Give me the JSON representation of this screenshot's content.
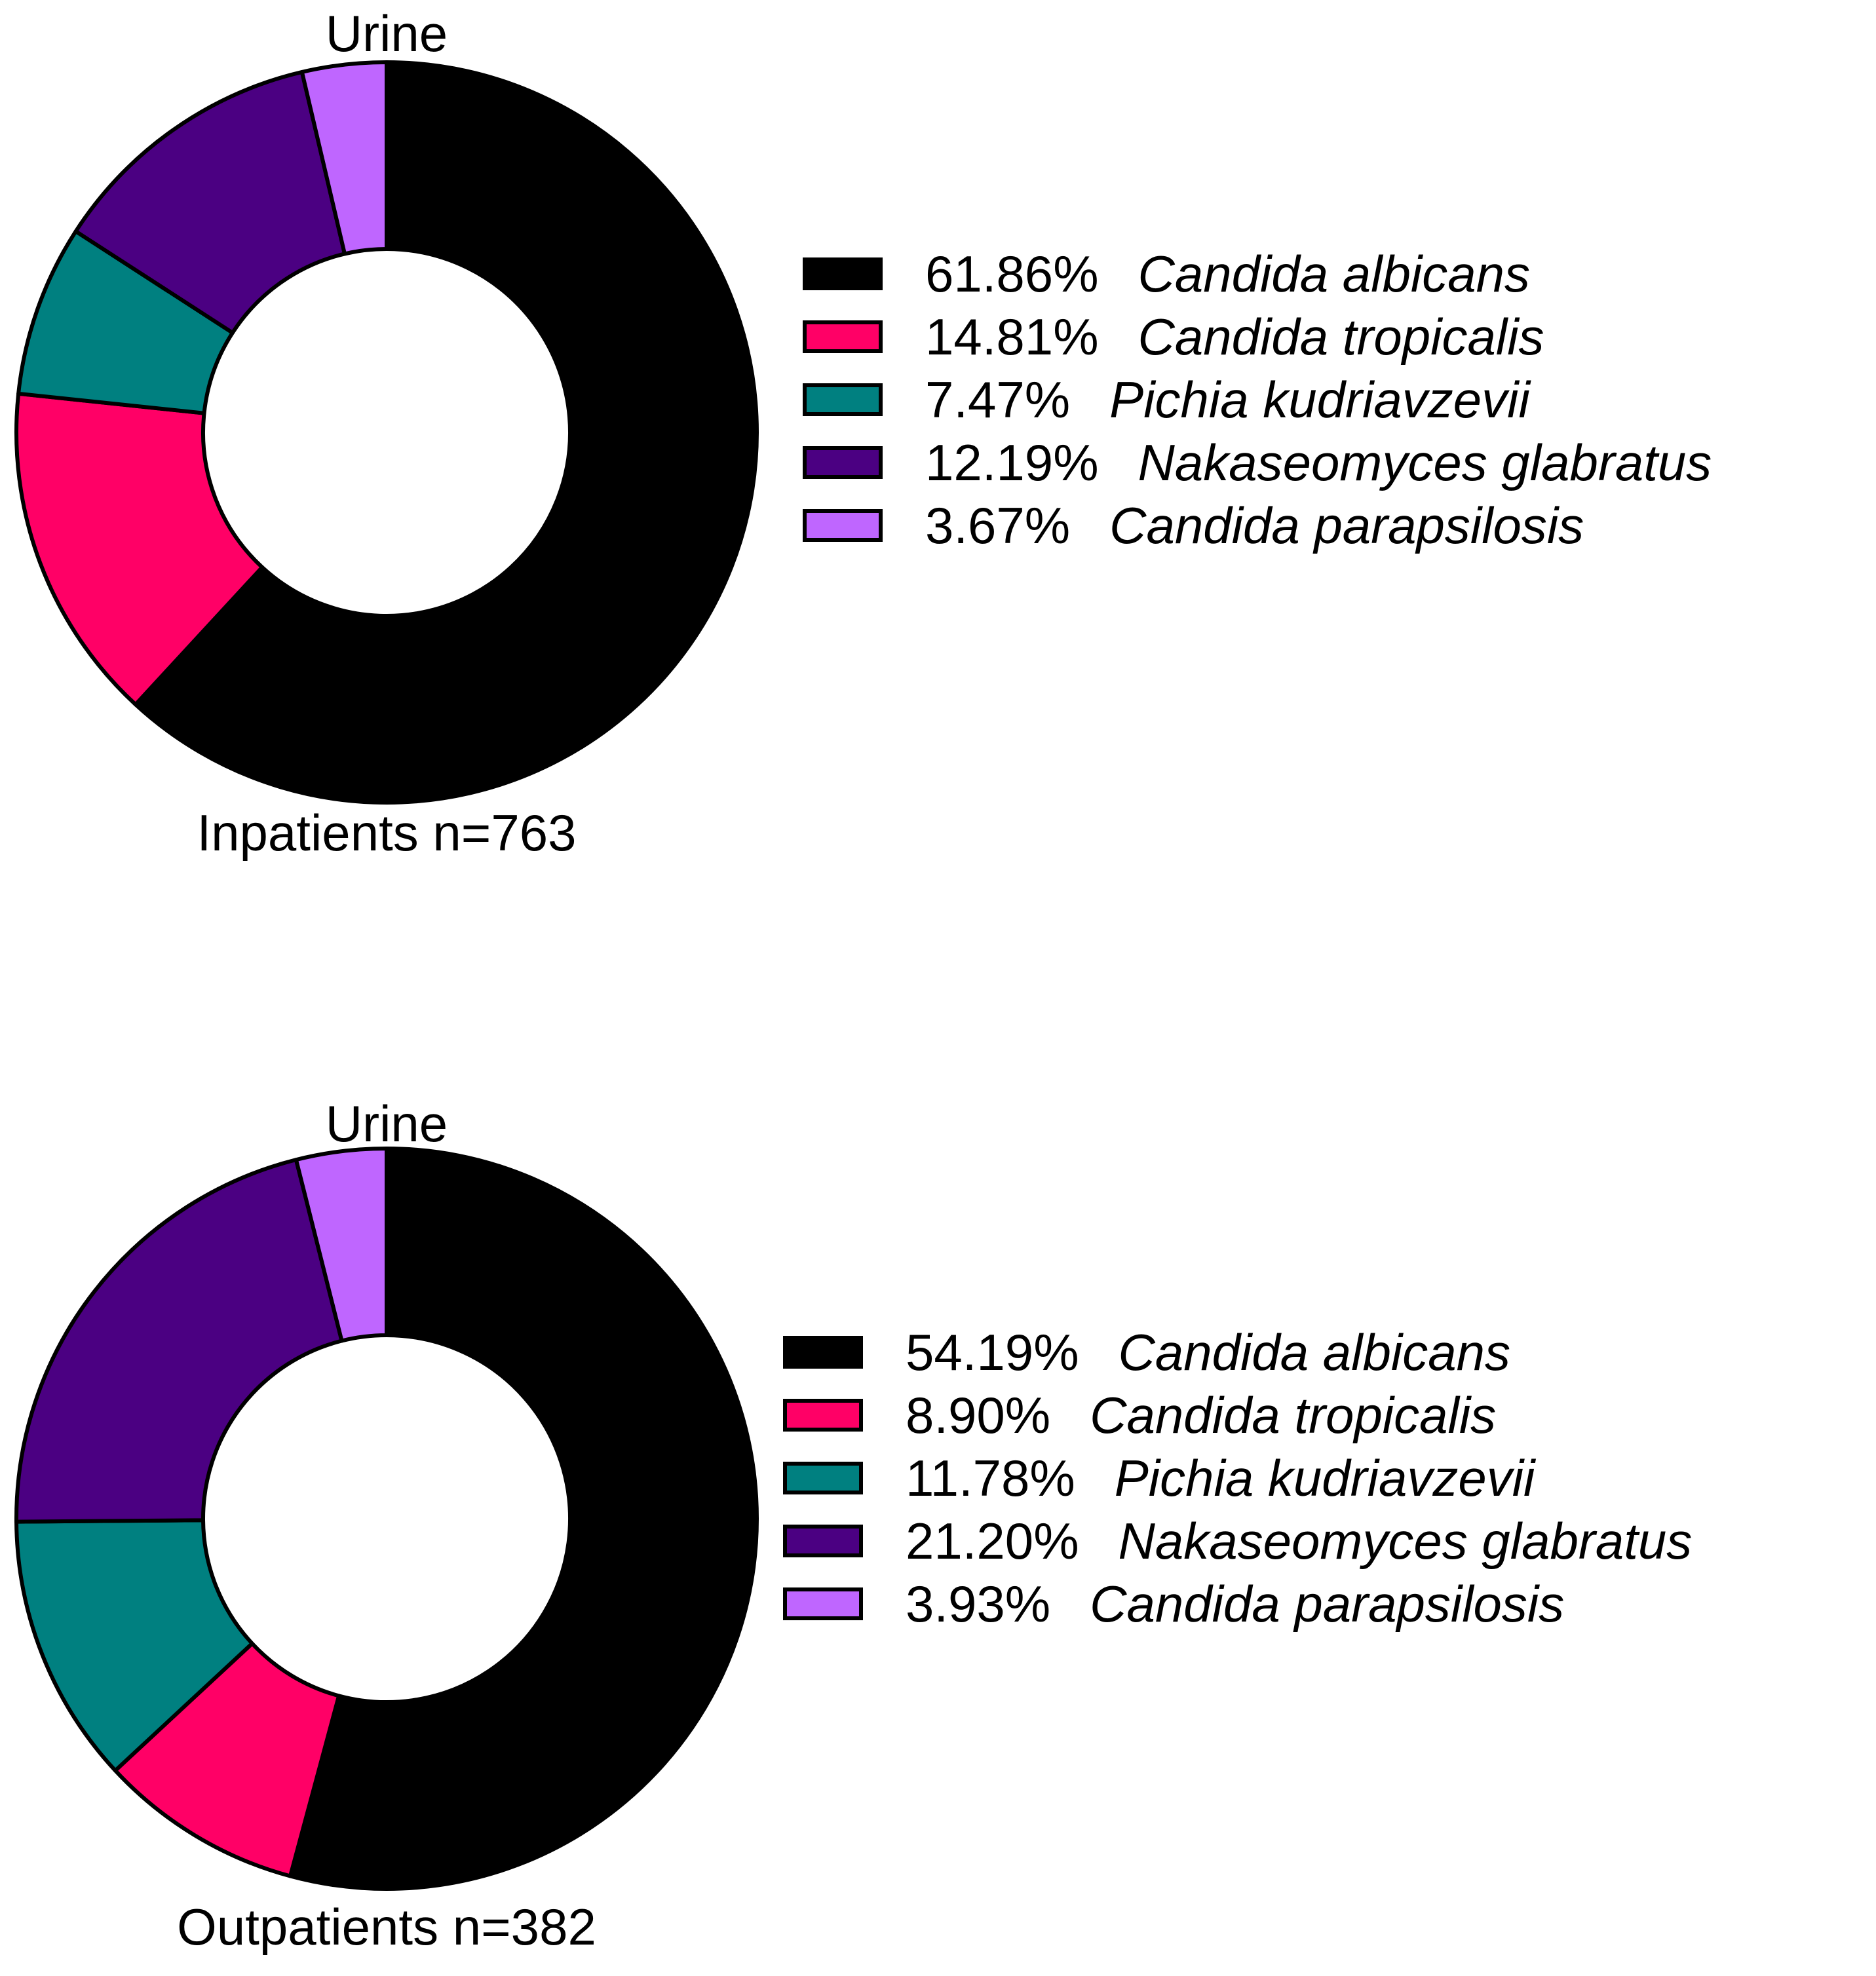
{
  "chart_data": [
    {
      "type": "pie",
      "variant": "donut",
      "title": "Urine",
      "xlabel": "Inpatients n=763",
      "series": [
        {
          "label": "Candida albicans",
          "percent": 61.86,
          "percent_label": "61.86%",
          "color": "#000000"
        },
        {
          "label": "Candida tropicalis",
          "percent": 14.81,
          "percent_label": "14.81%",
          "color": "#ff0066"
        },
        {
          "label": "Pichia kudriavzevii",
          "percent": 7.47,
          "percent_label": "7.47%",
          "color": "#008080"
        },
        {
          "label": "Nakaseomyces glabratus",
          "percent": 12.19,
          "percent_label": "12.19%",
          "color": "#4b0082"
        },
        {
          "label": "Candida parapsilosis",
          "percent": 3.67,
          "percent_label": "3.67%",
          "color": "#bf66ff"
        }
      ],
      "legend_position": "right"
    },
    {
      "type": "pie",
      "variant": "donut",
      "title": "Urine",
      "xlabel": "Outpatients n=382",
      "series": [
        {
          "label": "Candida albicans",
          "percent": 54.19,
          "percent_label": "54.19%",
          "color": "#000000"
        },
        {
          "label": "Candida tropicalis",
          "percent": 8.9,
          "percent_label": "8.90%",
          "color": "#ff0066"
        },
        {
          "label": "Pichia kudriavzevii",
          "percent": 11.78,
          "percent_label": "11.78%",
          "color": "#008080"
        },
        {
          "label": "Nakaseomyces glabratus",
          "percent": 21.2,
          "percent_label": "21.20%",
          "color": "#4b0082"
        },
        {
          "label": "Candida parapsilosis",
          "percent": 3.93,
          "percent_label": "3.93%",
          "color": "#bf66ff"
        }
      ],
      "legend_position": "right"
    }
  ]
}
